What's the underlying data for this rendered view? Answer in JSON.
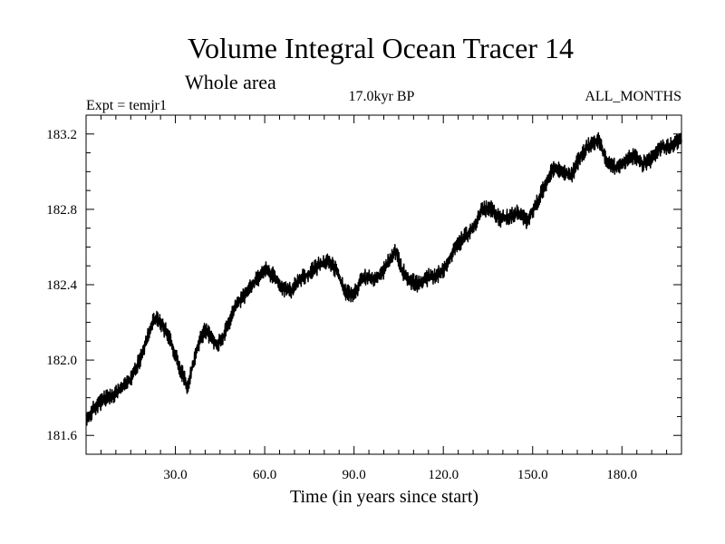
{
  "chart_data": {
    "type": "line",
    "title": "Volume Integral Ocean Tracer 14",
    "subtitle": "Whole area",
    "left_note": "Expt = temjr1",
    "center_note": "17.0kyr BP",
    "right_note": "ALL_MONTHS",
    "xlabel": "Time (in years since start)",
    "ylabel": "",
    "xlim": [
      0,
      200
    ],
    "ylim": [
      181.5,
      183.3
    ],
    "x_ticks": [
      30,
      60,
      90,
      120,
      150,
      180
    ],
    "x_tick_labels": [
      "30.0",
      "60.0",
      "90.0",
      "120.0",
      "150.0",
      "180.0"
    ],
    "y_ticks": [
      181.6,
      182.0,
      182.4,
      182.8,
      183.2
    ],
    "y_tick_labels": [
      "181.6",
      "182.0",
      "182.4",
      "182.8",
      "183.2"
    ],
    "series": [
      {
        "name": "Tracer 14",
        "trend_x": [
          0,
          3,
          6,
          9,
          12,
          15,
          18,
          21,
          23,
          25,
          28,
          31,
          34,
          36,
          38,
          40,
          42,
          44,
          46,
          50,
          55,
          60,
          63,
          66,
          69,
          72,
          75,
          78,
          81,
          84,
          87,
          90,
          93,
          96,
          99,
          102,
          104,
          106,
          109,
          112,
          115,
          118,
          121,
          124,
          127,
          130,
          133,
          136,
          139,
          142,
          145,
          148,
          151,
          154,
          157,
          160,
          163,
          166,
          169,
          172,
          175,
          178,
          181,
          184,
          187,
          190,
          193,
          196,
          200
        ],
        "trend_y": [
          181.68,
          181.75,
          181.79,
          181.81,
          181.85,
          181.9,
          182.0,
          182.14,
          182.22,
          182.2,
          182.12,
          181.98,
          181.86,
          181.98,
          182.1,
          182.16,
          182.12,
          182.08,
          182.12,
          182.28,
          182.38,
          182.48,
          182.45,
          182.38,
          182.37,
          182.43,
          182.46,
          182.5,
          182.53,
          182.48,
          182.36,
          182.35,
          182.44,
          182.43,
          182.45,
          182.53,
          182.58,
          182.48,
          182.42,
          182.4,
          182.44,
          182.45,
          182.5,
          182.6,
          182.65,
          182.7,
          182.8,
          182.8,
          182.75,
          182.76,
          182.78,
          182.74,
          182.82,
          182.92,
          183.02,
          183.0,
          182.98,
          183.08,
          183.14,
          183.17,
          183.05,
          183.02,
          183.06,
          183.08,
          183.04,
          183.07,
          183.13,
          183.13,
          183.18
        ],
        "noise_amplitude": 0.035,
        "samples_per_year": 12
      }
    ]
  }
}
